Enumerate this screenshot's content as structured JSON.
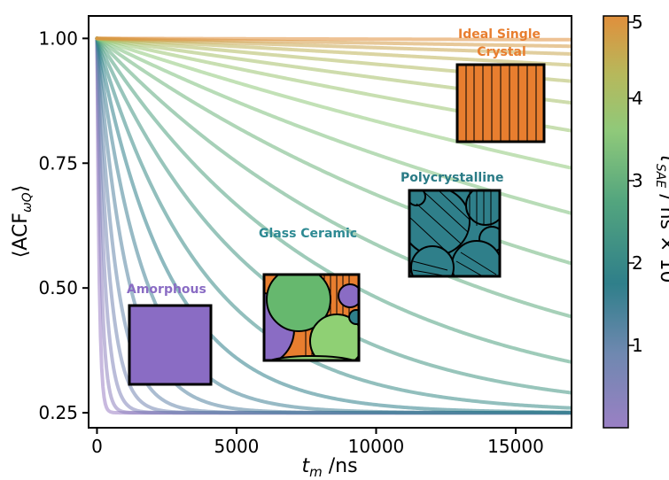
{
  "chart_data": {
    "type": "line",
    "xlabel": "t_m /ns",
    "ylabel": "⟨ACF_ωQ⟩",
    "xlim": [
      -300,
      17000
    ],
    "ylim": [
      0.22,
      1.045
    ],
    "x_ticks": [
      0,
      5000,
      10000,
      15000
    ],
    "x_tick_labels": [
      "0",
      "5000",
      "10000",
      "15000"
    ],
    "y_ticks": [
      0.25,
      0.5,
      0.75,
      1.0
    ],
    "y_tick_labels": [
      "0.25",
      "0.50",
      "0.75",
      "1.00"
    ],
    "model": "y = 0.25 + 0.75 * exp(-x / tau)",
    "series_tau_ns": [
      80,
      160,
      280,
      450,
      700,
      1100,
      1700,
      2600,
      3900,
      5800,
      8500,
      12500,
      18500,
      27000,
      40000,
      60000,
      90000,
      140000,
      230000,
      400000,
      800000,
      5000000
    ],
    "colorbar": {
      "label": "τ_SAE / ns × 10^6",
      "min": 0,
      "max": 5,
      "ticks": [
        1,
        2,
        3,
        4,
        5
      ],
      "tick_labels": [
        "1",
        "2",
        "3",
        "4",
        "5"
      ],
      "colors": [
        "#9a80c4",
        "#6f88b0",
        "#2f7f8a",
        "#53a57e",
        "#8fc97a",
        "#b7b85b",
        "#e08f3c"
      ]
    },
    "annotations": [
      {
        "label": "Amorphous",
        "color": "#8a6cc4"
      },
      {
        "label": "Glass Ceramic",
        "color": "#2e8a93"
      },
      {
        "label": "Polycrystalline",
        "color": "#2a7b86"
      },
      {
        "label": "Ideal Single\nCrystal",
        "color": "#e87e2f"
      }
    ]
  }
}
